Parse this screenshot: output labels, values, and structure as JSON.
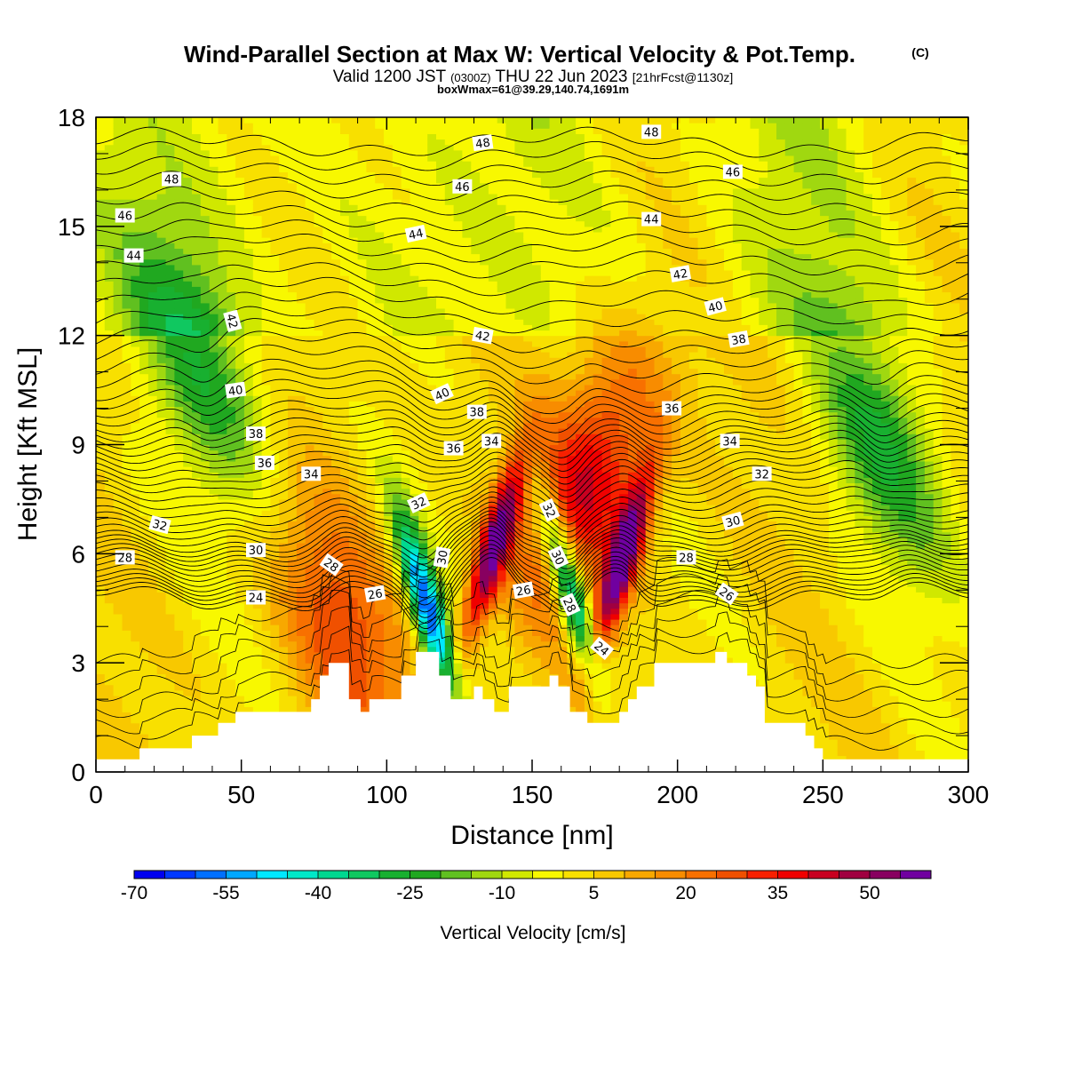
{
  "chart_data": {
    "type": "heatmap",
    "title": "Wind-Parallel Section at Max W: Vertical Velocity & Pot.Temp.",
    "title_mark": "(C)",
    "subtitle": {
      "valid": "Valid 1200 JST",
      "zulu": "(0300Z)",
      "date": "THU 22 Jun 2023",
      "forecast": "[21hrFcst@1130z]"
    },
    "info": "boxWmax=61@39.29,140.74,1691m",
    "xlabel": "Distance [nm]",
    "ylabel": "Height [Kft MSL]",
    "xlim": [
      0,
      300
    ],
    "ylim": [
      0,
      18
    ],
    "x_ticks": [
      0,
      50,
      100,
      150,
      200,
      250,
      300
    ],
    "y_ticks": [
      0,
      3,
      6,
      9,
      12,
      15,
      18
    ],
    "colorbar": {
      "title": "Vertical Velocity [cm/s]",
      "levels": [
        -70,
        -65,
        -60,
        -55,
        -50,
        -45,
        -40,
        -35,
        -30,
        -25,
        -20,
        -15,
        -10,
        -5,
        0,
        5,
        10,
        15,
        20,
        25,
        30,
        35,
        40,
        45,
        50,
        55,
        60
      ],
      "colors": [
        "#0000f0",
        "#0038ff",
        "#0070ff",
        "#00a8ff",
        "#00e8ff",
        "#00e8c8",
        "#00d890",
        "#10c860",
        "#18b030",
        "#20a820",
        "#60c020",
        "#a0d810",
        "#d0e800",
        "#f8f800",
        "#f8e000",
        "#f8c800",
        "#f8a800",
        "#f88c00",
        "#f87000",
        "#f05000",
        "#f82000",
        "#f00000",
        "#c80020",
        "#a00040",
        "#880060",
        "#7000a0"
      ],
      "tick_labels": [
        "-70",
        "-55",
        "-40",
        "-25",
        "-10",
        "5",
        "20",
        "35",
        "50"
      ]
    },
    "theta_contours": {
      "unit": "C",
      "levels": [
        24,
        26,
        28,
        30,
        32,
        34,
        36,
        38,
        40,
        42,
        44,
        46,
        48
      ],
      "base_heights_kft": {
        "24": 4.8,
        "26": 5.3,
        "28": 5.9,
        "30": 6.4,
        "32": 7.1,
        "34": 8.0,
        "36": 8.8,
        "38": 9.6,
        "40": 10.6,
        "42": 12.1,
        "44": 14.0,
        "46": 15.7,
        "48": 17.3
      }
    },
    "terrain": {
      "x": [
        0,
        15,
        15,
        30,
        30,
        33,
        33,
        42,
        42,
        48,
        48,
        55,
        55,
        74,
        74,
        77,
        77,
        80,
        80,
        87,
        87,
        91,
        91,
        94,
        94,
        105,
        105,
        108,
        108,
        110,
        110,
        113,
        113,
        118,
        118,
        122,
        122,
        130,
        130,
        133,
        133,
        137,
        137,
        142,
        142,
        156,
        156,
        159,
        159,
        163,
        163,
        169,
        169,
        180,
        180,
        183,
        183,
        186,
        186,
        192,
        192,
        213,
        213,
        217,
        217,
        224,
        224,
        227,
        227,
        230,
        230,
        244,
        244,
        247,
        247,
        250,
        250,
        257,
        257,
        260,
        260,
        264,
        264,
        268,
        268,
        300
      ],
      "h": [
        0.35,
        0.35,
        0.65,
        0.65,
        0.65,
        0.65,
        1.0,
        1.0,
        1.35,
        1.35,
        1.65,
        1.65,
        1.65,
        1.65,
        2.0,
        2.0,
        2.65,
        2.65,
        3.0,
        3.0,
        2.0,
        2.0,
        1.65,
        1.65,
        2.0,
        2.0,
        2.65,
        2.65,
        2.65,
        2.65,
        3.3,
        3.3,
        3.3,
        3.3,
        2.65,
        2.65,
        2.0,
        2.0,
        2.35,
        2.35,
        2.0,
        2.0,
        1.65,
        1.65,
        2.35,
        2.35,
        2.65,
        2.65,
        2.35,
        2.35,
        1.65,
        1.65,
        1.35,
        1.35,
        1.65,
        1.65,
        2.0,
        2.0,
        2.35,
        2.35,
        3.0,
        3.0,
        3.3,
        3.3,
        3.0,
        3.0,
        2.65,
        2.65,
        2.35,
        2.35,
        1.35,
        1.35,
        1.0,
        1.0,
        0.65,
        0.65,
        0.35,
        0.35,
        0.35,
        0.35,
        0.35,
        0.35,
        0.35,
        0.35,
        0.35,
        0.35
      ]
    },
    "w_features": [
      {
        "x": 137,
        "z": 6.2,
        "w": 55
      },
      {
        "x": 181,
        "z": 5.8,
        "w": 55
      },
      {
        "x": 170,
        "z": 8.0,
        "w": 35
      },
      {
        "x": 114,
        "z": 4.5,
        "w": -65
      },
      {
        "x": 163,
        "z": 5.0,
        "w": -55
      },
      {
        "x": 38,
        "z": 11.0,
        "w": -25
      },
      {
        "x": 270,
        "z": 9.0,
        "w": -25
      },
      {
        "x": 85,
        "z": 4.0,
        "w": 25
      }
    ],
    "contour_labels": [
      {
        "text": "48",
        "x": 26,
        "z": 16.3,
        "angle": 0
      },
      {
        "text": "46",
        "x": 10,
        "z": 15.3,
        "angle": 0
      },
      {
        "text": "44",
        "x": 13,
        "z": 14.2,
        "angle": 0
      },
      {
        "text": "48",
        "x": 133,
        "z": 17.3,
        "angle": -8
      },
      {
        "text": "48",
        "x": 191,
        "z": 17.6,
        "angle": 0
      },
      {
        "text": "46",
        "x": 126,
        "z": 16.1,
        "angle": 0
      },
      {
        "text": "46",
        "x": 219,
        "z": 16.5,
        "angle": 0
      },
      {
        "text": "44",
        "x": 110,
        "z": 14.8,
        "angle": -12
      },
      {
        "text": "44",
        "x": 191,
        "z": 15.2,
        "angle": 0
      },
      {
        "text": "42",
        "x": 201,
        "z": 13.7,
        "angle": -10
      },
      {
        "text": "42",
        "x": 47,
        "z": 12.4,
        "angle": 75
      },
      {
        "text": "42",
        "x": 133,
        "z": 12.0,
        "angle": 10
      },
      {
        "text": "40",
        "x": 213,
        "z": 12.8,
        "angle": -15
      },
      {
        "text": "40",
        "x": 48,
        "z": 10.5,
        "angle": -8
      },
      {
        "text": "40",
        "x": 119,
        "z": 10.4,
        "angle": -25
      },
      {
        "text": "38",
        "x": 221,
        "z": 11.9,
        "angle": -10
      },
      {
        "text": "38",
        "x": 55,
        "z": 9.3,
        "angle": 0
      },
      {
        "text": "38",
        "x": 131,
        "z": 9.9,
        "angle": 0
      },
      {
        "text": "36",
        "x": 198,
        "z": 10.0,
        "angle": 0
      },
      {
        "text": "36",
        "x": 58,
        "z": 8.5,
        "angle": 0
      },
      {
        "text": "36",
        "x": 123,
        "z": 8.9,
        "angle": 0
      },
      {
        "text": "34",
        "x": 136,
        "z": 9.1,
        "angle": 0
      },
      {
        "text": "34",
        "x": 218,
        "z": 9.1,
        "angle": 0
      },
      {
        "text": "34",
        "x": 74,
        "z": 8.2,
        "angle": 0
      },
      {
        "text": "32",
        "x": 229,
        "z": 8.2,
        "angle": 0
      },
      {
        "text": "32",
        "x": 22,
        "z": 6.8,
        "angle": 15
      },
      {
        "text": "32",
        "x": 111,
        "z": 7.4,
        "angle": -25
      },
      {
        "text": "32",
        "x": 156,
        "z": 7.2,
        "angle": 65
      },
      {
        "text": "30",
        "x": 219,
        "z": 6.9,
        "angle": -15
      },
      {
        "text": "30",
        "x": 55,
        "z": 6.1,
        "angle": 0
      },
      {
        "text": "30",
        "x": 119,
        "z": 5.9,
        "angle": -80
      },
      {
        "text": "30",
        "x": 159,
        "z": 5.9,
        "angle": 65
      },
      {
        "text": "28",
        "x": 10,
        "z": 5.9,
        "angle": 0
      },
      {
        "text": "28",
        "x": 203,
        "z": 5.9,
        "angle": 0
      },
      {
        "text": "28",
        "x": 81,
        "z": 5.7,
        "angle": 35
      },
      {
        "text": "28",
        "x": 163,
        "z": 4.6,
        "angle": 65
      },
      {
        "text": "26",
        "x": 96,
        "z": 4.9,
        "angle": -10
      },
      {
        "text": "26",
        "x": 147,
        "z": 5.0,
        "angle": -10
      },
      {
        "text": "26",
        "x": 217,
        "z": 4.9,
        "angle": 35
      },
      {
        "text": "24",
        "x": 55,
        "z": 4.8,
        "angle": 0
      },
      {
        "text": "24",
        "x": 174,
        "z": 3.4,
        "angle": 40
      }
    ]
  }
}
